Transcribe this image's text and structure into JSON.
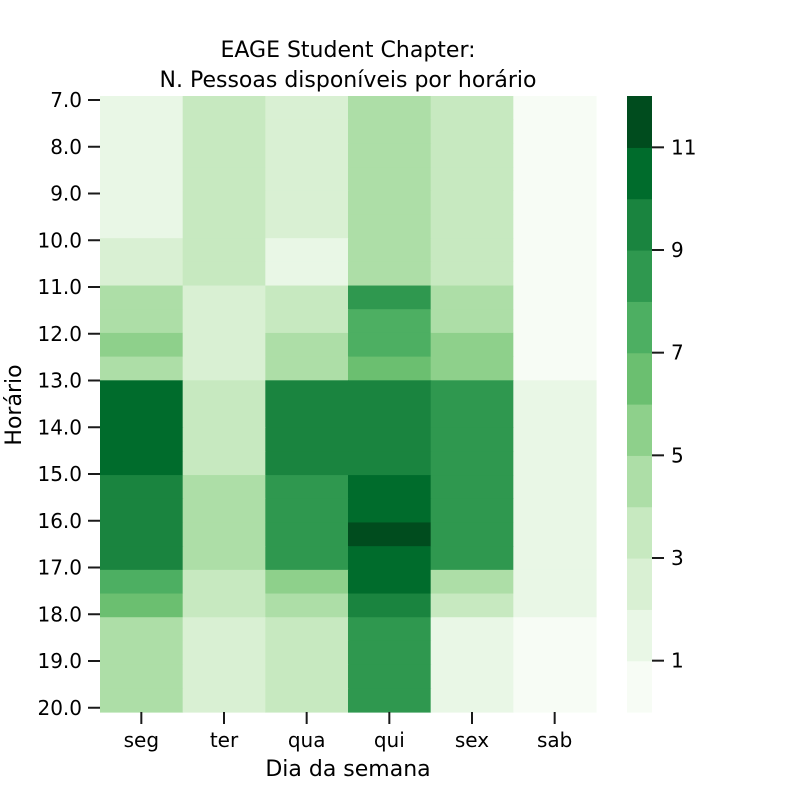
{
  "chart_data": {
    "type": "heatmap",
    "title": "EAGE Student Chapter:",
    "subtitle": "N. Pessoas disponíveis por horário",
    "xlabel": "Dia da semana",
    "ylabel": "Horário",
    "x_labels": [
      "seg",
      "ter",
      "qua",
      "qui",
      "sex",
      "sab"
    ],
    "y_labels": [
      "7.0",
      "8.0",
      "9.0",
      "10.0",
      "11.0",
      "12.0",
      "13.0",
      "14.0",
      "15.0",
      "16.0",
      "17.0",
      "18.0",
      "19.0",
      "20.0"
    ],
    "colorbar": {
      "ticks": [
        "1",
        "3",
        "5",
        "7",
        "9",
        "11"
      ],
      "range": [
        0,
        12
      ],
      "bins": 12
    },
    "colorscale": [
      "#f7fcf5",
      "#e9f7e6",
      "#d9f0d3",
      "#c7e9c0",
      "#addea7",
      "#8ed08b",
      "#6bbf70",
      "#4daf62",
      "#2f984f",
      "#1a843f",
      "#006c2c",
      "#004c1e"
    ],
    "rows": [
      {
        "y": "7.0",
        "values": [
          1,
          3,
          2,
          4,
          3,
          0
        ]
      },
      {
        "y": "7.5",
        "values": [
          1,
          3,
          2,
          4,
          3,
          0
        ]
      },
      {
        "y": "8.0",
        "values": [
          1,
          3,
          2,
          4,
          3,
          0
        ]
      },
      {
        "y": "8.5",
        "values": [
          1,
          3,
          2,
          4,
          3,
          0
        ]
      },
      {
        "y": "9.0",
        "values": [
          1,
          3,
          2,
          4,
          3,
          0
        ]
      },
      {
        "y": "9.5",
        "values": [
          1,
          3,
          2,
          4,
          3,
          0
        ]
      },
      {
        "y": "10.0",
        "values": [
          2,
          3,
          1,
          4,
          3,
          0
        ]
      },
      {
        "y": "10.5",
        "values": [
          2,
          3,
          1,
          4,
          3,
          0
        ]
      },
      {
        "y": "11.0",
        "values": [
          4,
          2,
          3,
          8,
          4,
          0
        ]
      },
      {
        "y": "11.5",
        "values": [
          4,
          2,
          3,
          7,
          4,
          0
        ]
      },
      {
        "y": "12.0",
        "values": [
          5,
          2,
          4,
          7,
          5,
          0
        ]
      },
      {
        "y": "12.5",
        "values": [
          4,
          2,
          4,
          6,
          5,
          0
        ]
      },
      {
        "y": "13.0",
        "values": [
          10,
          3,
          9,
          9,
          8,
          1
        ]
      },
      {
        "y": "13.5",
        "values": [
          10,
          3,
          9,
          9,
          8,
          1
        ]
      },
      {
        "y": "14.0",
        "values": [
          10,
          3,
          9,
          9,
          8,
          1
        ]
      },
      {
        "y": "14.5",
        "values": [
          10,
          3,
          9,
          9,
          8,
          1
        ]
      },
      {
        "y": "15.0",
        "values": [
          9,
          4,
          8,
          10,
          8,
          1
        ]
      },
      {
        "y": "15.5",
        "values": [
          9,
          4,
          8,
          10,
          8,
          1
        ]
      },
      {
        "y": "16.0",
        "values": [
          9,
          4,
          8,
          12,
          8,
          1
        ]
      },
      {
        "y": "16.5",
        "values": [
          9,
          4,
          8,
          10,
          8,
          1
        ]
      },
      {
        "y": "17.0",
        "values": [
          7,
          3,
          5,
          10,
          4,
          1
        ]
      },
      {
        "y": "17.5",
        "values": [
          6,
          3,
          4,
          9,
          3,
          1
        ]
      },
      {
        "y": "18.0",
        "values": [
          4,
          2,
          3,
          8,
          1,
          0
        ]
      },
      {
        "y": "18.5",
        "values": [
          4,
          2,
          3,
          8,
          1,
          0
        ]
      },
      {
        "y": "19.0",
        "values": [
          4,
          2,
          3,
          8,
          1,
          0
        ]
      },
      {
        "y": "19.5",
        "values": [
          4,
          2,
          3,
          8,
          1,
          0
        ]
      }
    ]
  }
}
